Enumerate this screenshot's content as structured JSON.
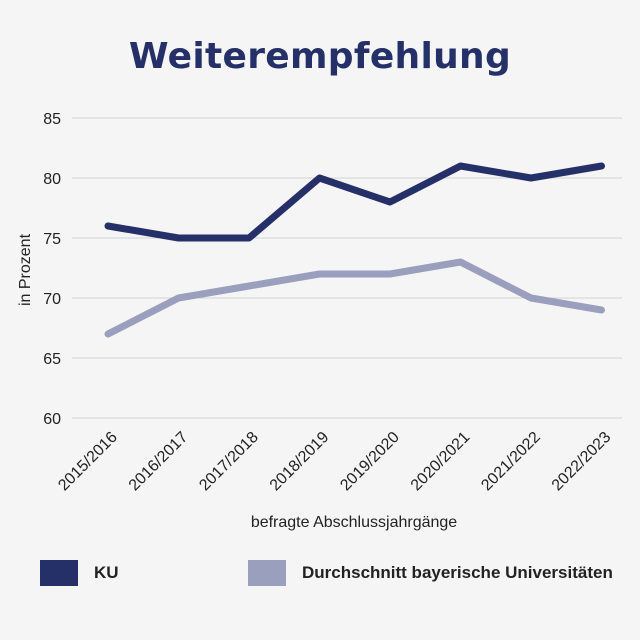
{
  "chart_data": {
    "type": "line",
    "title": "Weiterempfehlung",
    "xlabel": "befragte Abschlussjahrgänge",
    "ylabel": "in Prozent",
    "categories": [
      "2015/2016",
      "2016/2017",
      "2017/2018",
      "2018/2019",
      "2019/2020",
      "2020/2021",
      "2021/2022",
      "2022/2023"
    ],
    "ylim": [
      60,
      85
    ],
    "yticks": [
      60,
      65,
      70,
      75,
      80,
      85
    ],
    "grid": true,
    "legend_position": "bottom",
    "series": [
      {
        "name": "KU",
        "color": "#263068",
        "values": [
          76,
          75,
          75,
          80,
          78,
          81,
          80,
          81
        ]
      },
      {
        "name": "Durchschnitt bayerische Universitäten",
        "color": "#9a9fbd",
        "values": [
          67,
          70,
          71,
          72,
          72,
          73,
          70,
          69
        ]
      }
    ]
  }
}
